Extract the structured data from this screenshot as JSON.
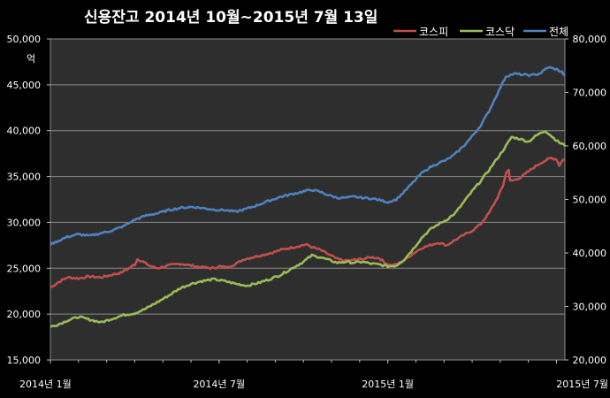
{
  "chart_data": {
    "type": "line",
    "title": "신용잔고 2014년 10월~2015년 7월 13일",
    "y_left_unit": "억",
    "y_left": {
      "min": 15000,
      "max": 50000,
      "ticks": [
        "15,000",
        "20,000",
        "25,000",
        "30,000",
        "35,000",
        "40,000",
        "45,000",
        "50,000"
      ],
      "tick_values": [
        15000,
        20000,
        25000,
        30000,
        35000,
        40000,
        45000,
        50000
      ]
    },
    "y_right": {
      "min": 20000,
      "max": 80000,
      "ticks": [
        "20,000",
        "30,000",
        "40,000",
        "50,000",
        "60,000",
        "70,000",
        "80,000"
      ],
      "tick_values": [
        20000,
        30000,
        40000,
        50000,
        60000,
        70000,
        80000
      ]
    },
    "x_ticks": [
      {
        "label": "2014년 1월",
        "x": 0
      },
      {
        "label": "2014년 7월",
        "x": 6
      },
      {
        "label": "2015년 1월",
        "x": 12
      },
      {
        "label": "2015년 7월",
        "x": 18
      }
    ],
    "x_range": [
      0,
      18.3
    ],
    "grid": "horizontal",
    "legend_position": "top-right",
    "series": [
      {
        "name": "코스피",
        "axis": "left",
        "color": "#c0504d",
        "points": [
          [
            0,
            22900
          ],
          [
            0.3,
            23500
          ],
          [
            0.6,
            24000
          ],
          [
            1.0,
            23900
          ],
          [
            1.4,
            24100
          ],
          [
            1.8,
            24000
          ],
          [
            2.2,
            24300
          ],
          [
            2.5,
            24500
          ],
          [
            2.8,
            25000
          ],
          [
            3.0,
            25400
          ],
          [
            3.1,
            26000
          ],
          [
            3.3,
            25700
          ],
          [
            3.5,
            25300
          ],
          [
            3.8,
            25000
          ],
          [
            4.2,
            25300
          ],
          [
            4.6,
            25500
          ],
          [
            5.0,
            25300
          ],
          [
            5.4,
            25100
          ],
          [
            5.8,
            25000
          ],
          [
            6.0,
            25200
          ],
          [
            6.3,
            25100
          ],
          [
            6.6,
            25500
          ],
          [
            6.9,
            26000
          ],
          [
            7.2,
            26200
          ],
          [
            7.6,
            26500
          ],
          [
            7.9,
            26700
          ],
          [
            8.2,
            27000
          ],
          [
            8.5,
            27200
          ],
          [
            8.8,
            27400
          ],
          [
            9.1,
            27600
          ],
          [
            9.3,
            27300
          ],
          [
            9.6,
            27000
          ],
          [
            9.9,
            26500
          ],
          [
            10.2,
            26000
          ],
          [
            10.5,
            25800
          ],
          [
            10.8,
            25900
          ],
          [
            11.1,
            26000
          ],
          [
            11.4,
            26200
          ],
          [
            11.7,
            26100
          ],
          [
            11.9,
            25600
          ],
          [
            12.1,
            25300
          ],
          [
            12.3,
            25400
          ],
          [
            12.6,
            25900
          ],
          [
            12.9,
            26600
          ],
          [
            13.2,
            27200
          ],
          [
            13.5,
            27500
          ],
          [
            13.8,
            27800
          ],
          [
            14.1,
            27500
          ],
          [
            14.4,
            28100
          ],
          [
            14.7,
            28600
          ],
          [
            15.0,
            29100
          ],
          [
            15.3,
            29800
          ],
          [
            15.6,
            31000
          ],
          [
            15.9,
            32700
          ],
          [
            16.1,
            34000
          ],
          [
            16.2,
            35300
          ],
          [
            16.3,
            35800
          ],
          [
            16.35,
            34500
          ],
          [
            16.6,
            34700
          ],
          [
            16.9,
            35300
          ],
          [
            17.2,
            36000
          ],
          [
            17.5,
            36600
          ],
          [
            17.8,
            37000
          ],
          [
            18.0,
            36900
          ],
          [
            18.1,
            36200
          ],
          [
            18.2,
            36700
          ],
          [
            18.3,
            36900
          ],
          [
            18.5,
            37100
          ],
          [
            18.7,
            37000
          ],
          [
            18.9,
            37300
          ],
          [
            19.0,
            37200
          ]
        ]
      },
      {
        "name": "코스닥",
        "axis": "left",
        "color": "#9bbb59",
        "points": [
          [
            0,
            18600
          ],
          [
            0.3,
            18900
          ],
          [
            0.6,
            19300
          ],
          [
            1.0,
            19700
          ],
          [
            1.4,
            19400
          ],
          [
            1.8,
            19100
          ],
          [
            2.2,
            19500
          ],
          [
            2.6,
            19900
          ],
          [
            3.0,
            20100
          ],
          [
            3.4,
            20600
          ],
          [
            3.8,
            21300
          ],
          [
            4.2,
            22000
          ],
          [
            4.6,
            22800
          ],
          [
            5.0,
            23300
          ],
          [
            5.4,
            23600
          ],
          [
            5.8,
            23800
          ],
          [
            6.2,
            23600
          ],
          [
            6.6,
            23300
          ],
          [
            7.0,
            23100
          ],
          [
            7.4,
            23400
          ],
          [
            7.8,
            23800
          ],
          [
            8.2,
            24300
          ],
          [
            8.6,
            25000
          ],
          [
            9.0,
            25700
          ],
          [
            9.3,
            26400
          ],
          [
            9.6,
            26200
          ],
          [
            9.9,
            25900
          ],
          [
            10.2,
            25600
          ],
          [
            10.5,
            25700
          ],
          [
            10.8,
            25600
          ],
          [
            11.1,
            25700
          ],
          [
            11.4,
            25500
          ],
          [
            11.7,
            25400
          ],
          [
            12.0,
            25200
          ],
          [
            12.3,
            25300
          ],
          [
            12.6,
            26000
          ],
          [
            12.9,
            27100
          ],
          [
            13.2,
            28300
          ],
          [
            13.5,
            29200
          ],
          [
            13.8,
            29800
          ],
          [
            14.1,
            30300
          ],
          [
            14.4,
            31000
          ],
          [
            14.7,
            32200
          ],
          [
            15.0,
            33400
          ],
          [
            15.3,
            34500
          ],
          [
            15.6,
            35700
          ],
          [
            15.9,
            37000
          ],
          [
            16.2,
            38300
          ],
          [
            16.4,
            39300
          ],
          [
            16.7,
            39100
          ],
          [
            17.0,
            38800
          ],
          [
            17.3,
            39500
          ],
          [
            17.6,
            40000
          ],
          [
            17.9,
            39200
          ],
          [
            18.1,
            38700
          ],
          [
            18.3,
            38400
          ],
          [
            18.5,
            37500
          ],
          [
            18.7,
            38300
          ],
          [
            18.9,
            39200
          ],
          [
            19.0,
            39800
          ]
        ]
      },
      {
        "name": "전체",
        "axis": "right",
        "color": "#4f81bd",
        "points": [
          [
            0,
            41600
          ],
          [
            0.3,
            42300
          ],
          [
            0.6,
            43000
          ],
          [
            1.0,
            43500
          ],
          [
            1.4,
            43200
          ],
          [
            1.8,
            43700
          ],
          [
            2.2,
            44200
          ],
          [
            2.6,
            45000
          ],
          [
            3.0,
            46200
          ],
          [
            3.4,
            47000
          ],
          [
            3.8,
            47400
          ],
          [
            4.2,
            48000
          ],
          [
            4.6,
            48400
          ],
          [
            5.0,
            48600
          ],
          [
            5.4,
            48400
          ],
          [
            5.8,
            48100
          ],
          [
            6.2,
            48000
          ],
          [
            6.6,
            47700
          ],
          [
            7.0,
            48300
          ],
          [
            7.4,
            49000
          ],
          [
            7.8,
            49800
          ],
          [
            8.2,
            50500
          ],
          [
            8.6,
            51000
          ],
          [
            9.0,
            51500
          ],
          [
            9.3,
            51800
          ],
          [
            9.6,
            51400
          ],
          [
            9.9,
            50800
          ],
          [
            10.2,
            50300
          ],
          [
            10.5,
            50300
          ],
          [
            10.8,
            50500
          ],
          [
            11.1,
            50300
          ],
          [
            11.4,
            50200
          ],
          [
            11.7,
            49900
          ],
          [
            12.0,
            49500
          ],
          [
            12.3,
            50000
          ],
          [
            12.6,
            51500
          ],
          [
            12.9,
            53200
          ],
          [
            13.2,
            54900
          ],
          [
            13.5,
            56000
          ],
          [
            13.8,
            56800
          ],
          [
            14.1,
            57400
          ],
          [
            14.4,
            58500
          ],
          [
            14.7,
            60000
          ],
          [
            15.0,
            61800
          ],
          [
            15.3,
            63800
          ],
          [
            15.6,
            66500
          ],
          [
            15.9,
            69800
          ],
          [
            16.2,
            73000
          ],
          [
            16.5,
            73500
          ],
          [
            16.8,
            73300
          ],
          [
            17.1,
            73200
          ],
          [
            17.4,
            73500
          ],
          [
            17.7,
            74700
          ],
          [
            18.0,
            74300
          ],
          [
            18.2,
            73800
          ],
          [
            18.4,
            72300
          ],
          [
            18.6,
            73500
          ],
          [
            18.8,
            74200
          ],
          [
            19.0,
            74500
          ]
        ]
      }
    ]
  }
}
